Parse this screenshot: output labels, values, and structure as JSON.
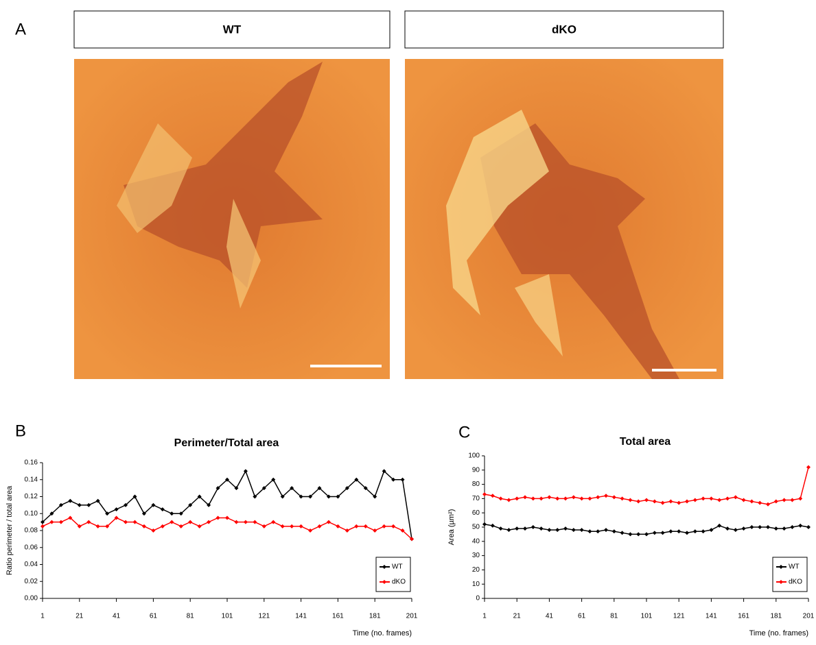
{
  "figure": {
    "labels": [
      "A",
      "B",
      "C"
    ],
    "headers": [
      "WT",
      "dKO"
    ]
  },
  "chart_data": [
    {
      "type": "line",
      "title": "Perimeter/Total area",
      "x_label": "Time (no. frames)",
      "y_label": "Ratio perimeter / total area",
      "x": [
        1,
        6,
        11,
        16,
        21,
        26,
        31,
        36,
        41,
        46,
        51,
        56,
        61,
        66,
        71,
        76,
        81,
        86,
        91,
        96,
        101,
        106,
        111,
        116,
        121,
        126,
        131,
        136,
        141,
        146,
        151,
        156,
        161,
        166,
        171,
        176,
        181,
        186,
        191,
        196,
        201
      ],
      "series": [
        {
          "name": "WT",
          "color": "#000000",
          "values": [
            0.09,
            0.1,
            0.11,
            0.115,
            0.11,
            0.11,
            0.115,
            0.1,
            0.105,
            0.11,
            0.12,
            0.1,
            0.11,
            0.105,
            0.1,
            0.1,
            0.11,
            0.12,
            0.11,
            0.13,
            0.14,
            0.13,
            0.15,
            0.12,
            0.13,
            0.14,
            0.12,
            0.13,
            0.12,
            0.12,
            0.13,
            0.12,
            0.12,
            0.13,
            0.14,
            0.13,
            0.12,
            0.15,
            0.14,
            0.14,
            0.07
          ]
        },
        {
          "name": "dKO",
          "color": "#ff0000",
          "values": [
            0.085,
            0.09,
            0.09,
            0.095,
            0.085,
            0.09,
            0.085,
            0.085,
            0.095,
            0.09,
            0.09,
            0.085,
            0.08,
            0.085,
            0.09,
            0.085,
            0.09,
            0.085,
            0.09,
            0.095,
            0.095,
            0.09,
            0.09,
            0.09,
            0.085,
            0.09,
            0.085,
            0.085,
            0.085,
            0.08,
            0.085,
            0.09,
            0.085,
            0.08,
            0.085,
            0.085,
            0.08,
            0.085,
            0.085,
            0.08,
            0.07
          ]
        }
      ],
      "xlim": [
        1,
        201
      ],
      "xticks": [
        1,
        21,
        41,
        61,
        81,
        101,
        121,
        141,
        161,
        181,
        201
      ],
      "ylim": [
        0,
        0.16
      ],
      "yticks": [
        {
          "value": 0,
          "label": "0.00"
        },
        0.02,
        0.04,
        0.06,
        0.08,
        {
          "value": 0.1,
          "label": "0.10"
        },
        0.12,
        0.14,
        0.16
      ],
      "grid": false,
      "legend": "lower right"
    },
    {
      "type": "line",
      "title": "Total area",
      "x_label": "Time (no. frames)",
      "y_label": "Area (µm²)",
      "x": [
        1,
        6,
        11,
        16,
        21,
        26,
        31,
        36,
        41,
        46,
        51,
        56,
        61,
        66,
        71,
        76,
        81,
        86,
        91,
        96,
        101,
        106,
        111,
        116,
        121,
        126,
        131,
        136,
        141,
        146,
        151,
        156,
        161,
        166,
        171,
        176,
        181,
        186,
        191,
        196,
        201
      ],
      "series": [
        {
          "name": "WT",
          "color": "#000000",
          "values": [
            52,
            51,
            49,
            48,
            49,
            49,
            50,
            49,
            48,
            48,
            49,
            48,
            48,
            47,
            47,
            48,
            47,
            46,
            45,
            45,
            45,
            46,
            46,
            47,
            47,
            46,
            47,
            47,
            48,
            51,
            49,
            48,
            49,
            50,
            50,
            50,
            49,
            49,
            50,
            51,
            50
          ]
        },
        {
          "name": "dKO",
          "color": "#ff0000",
          "values": [
            73,
            72,
            70,
            69,
            70,
            71,
            70,
            70,
            71,
            70,
            70,
            71,
            70,
            70,
            71,
            72,
            71,
            70,
            69,
            68,
            69,
            68,
            67,
            68,
            67,
            68,
            69,
            70,
            70,
            69,
            70,
            71,
            69,
            68,
            67,
            66,
            68,
            69,
            69,
            70,
            92
          ]
        }
      ],
      "xlim": [
        1,
        201
      ],
      "xticks": [
        1,
        21,
        41,
        61,
        81,
        101,
        121,
        141,
        161,
        181,
        201
      ],
      "ylim": [
        0,
        100
      ],
      "yticks": [
        0,
        10,
        20,
        30,
        40,
        50,
        60,
        70,
        80,
        90,
        100
      ],
      "grid": false,
      "legend": "lower right"
    }
  ]
}
